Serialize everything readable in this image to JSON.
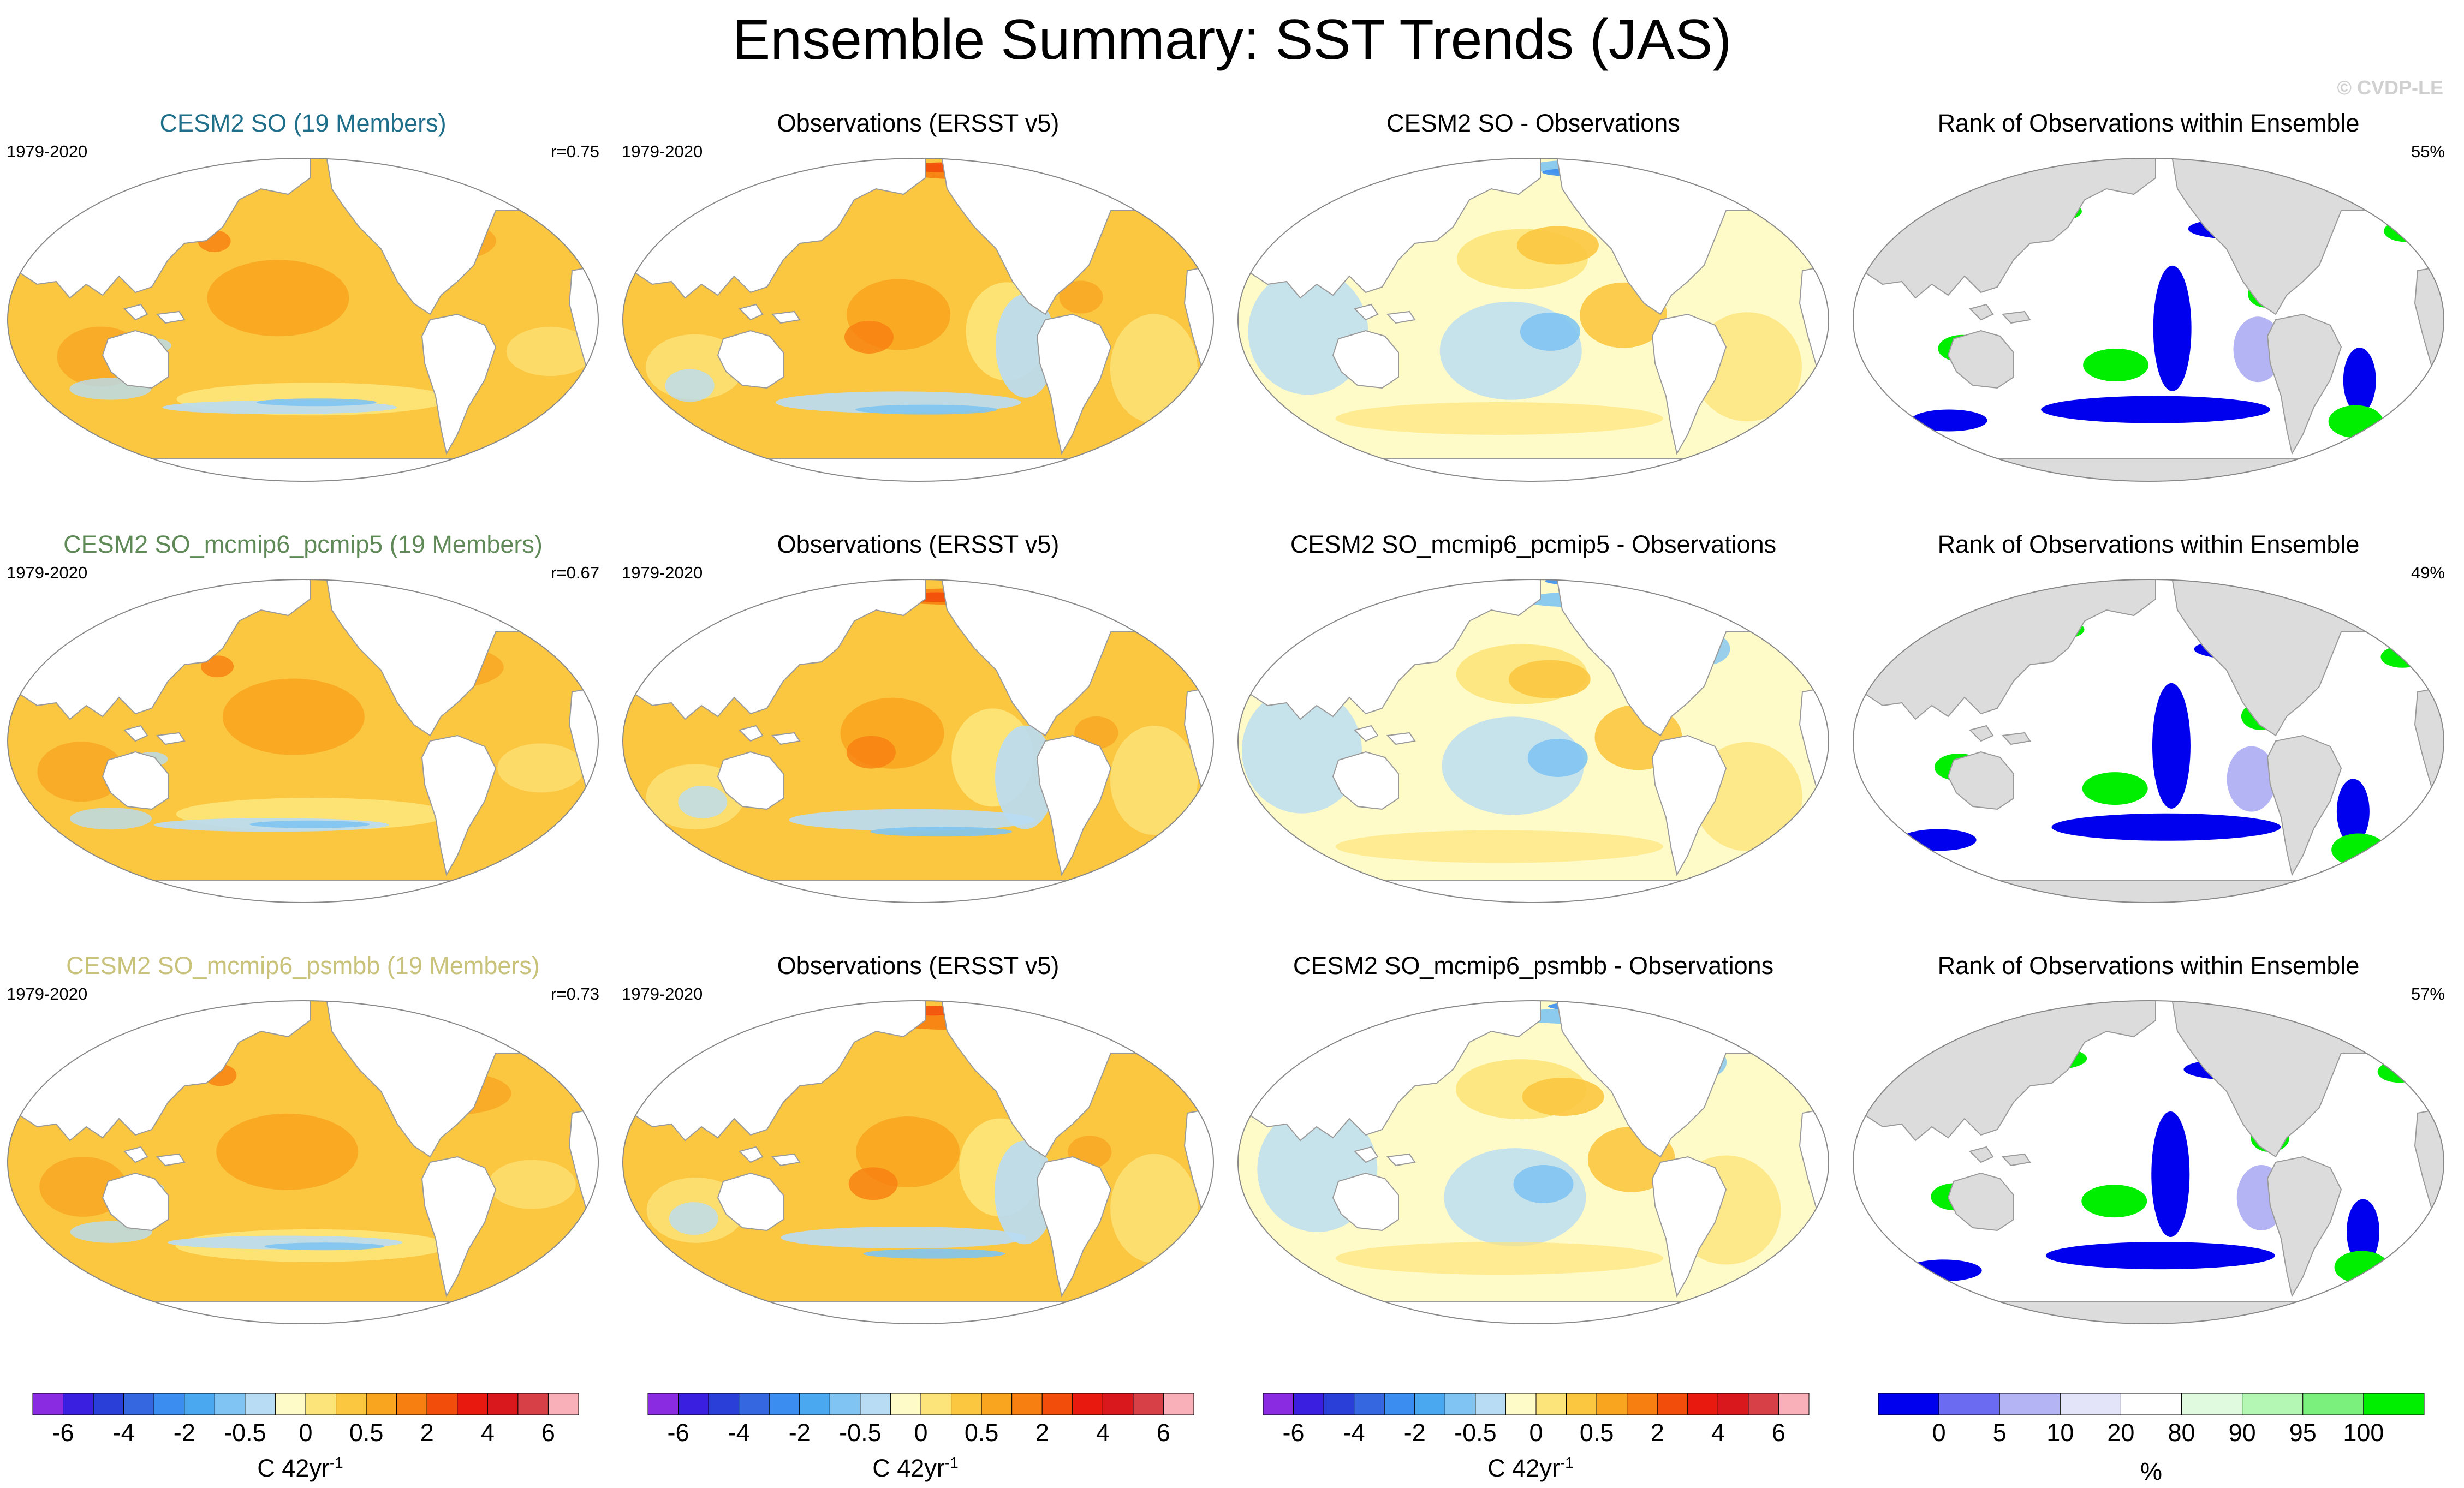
{
  "title": "Ensemble Summary: SST Trends (JAS)",
  "watermark": "© CVDP-LE",
  "rows": [
    {
      "model": {
        "title": "CESM2 SO (19 Members)",
        "title_color": "#1f6f8b",
        "period": "1979-2020",
        "corr": "r=0.75"
      },
      "obs": {
        "title": "Observations (ERSST v5)",
        "period": "1979-2020"
      },
      "diff": {
        "title": "CESM2 SO - Observations"
      },
      "rank": {
        "title": "Rank of Observations within Ensemble",
        "pct": "55%"
      }
    },
    {
      "model": {
        "title": "CESM2 SO_mcmip6_pcmip5 (19 Members)",
        "title_color": "#5f8a58",
        "period": "1979-2020",
        "corr": "r=0.67"
      },
      "obs": {
        "title": "Observations (ERSST v5)",
        "period": "1979-2020"
      },
      "diff": {
        "title": "CESM2 SO_mcmip6_pcmip5 - Observations"
      },
      "rank": {
        "title": "Rank of Observations within Ensemble",
        "pct": "49%"
      }
    },
    {
      "model": {
        "title": "CESM2 SO_mcmip6_psmbb (19 Members)",
        "title_color": "#c9c27a",
        "period": "1979-2020",
        "corr": "r=0.73"
      },
      "obs": {
        "title": "Observations (ERSST v5)",
        "period": "1979-2020"
      },
      "diff": {
        "title": "CESM2 SO_mcmip6_psmbb - Observations"
      },
      "rank": {
        "title": "Rank of Observations within Ensemble",
        "pct": "57%"
      }
    }
  ],
  "trend_colorbar": {
    "colors": [
      "#8a2be2",
      "#3a1fe0",
      "#2a3fd8",
      "#3568e0",
      "#3b8ef0",
      "#4aa8f0",
      "#7fc4f2",
      "#b8dcf4",
      "#fffbc8",
      "#fde47a",
      "#fbc640",
      "#f9a520",
      "#f77e10",
      "#f24d0a",
      "#e81a10",
      "#d8181c",
      "#d84048",
      "#f9b0b8"
    ],
    "ticks": [
      "-6",
      "-4",
      "-2",
      "-0.5",
      "0",
      "0.5",
      "2",
      "4",
      "6"
    ],
    "tick_boundaries": [
      1,
      3,
      5,
      7,
      9,
      11,
      13,
      15,
      17
    ],
    "unit": "C 42yr",
    "unit_sup": "-1"
  },
  "rank_colorbar": {
    "colors": [
      "#0000ee",
      "#6b6bf2",
      "#b4b4f4",
      "#e3e3fa",
      "#ffffff",
      "#e0fae0",
      "#b4f6b4",
      "#7cf07c",
      "#00ee00"
    ],
    "ticks": [
      "0",
      "5",
      "10",
      "20",
      "80",
      "90",
      "95",
      "100"
    ],
    "tick_boundaries": [
      1,
      2,
      3,
      4,
      5,
      6,
      7,
      8
    ],
    "unit": "%"
  }
}
